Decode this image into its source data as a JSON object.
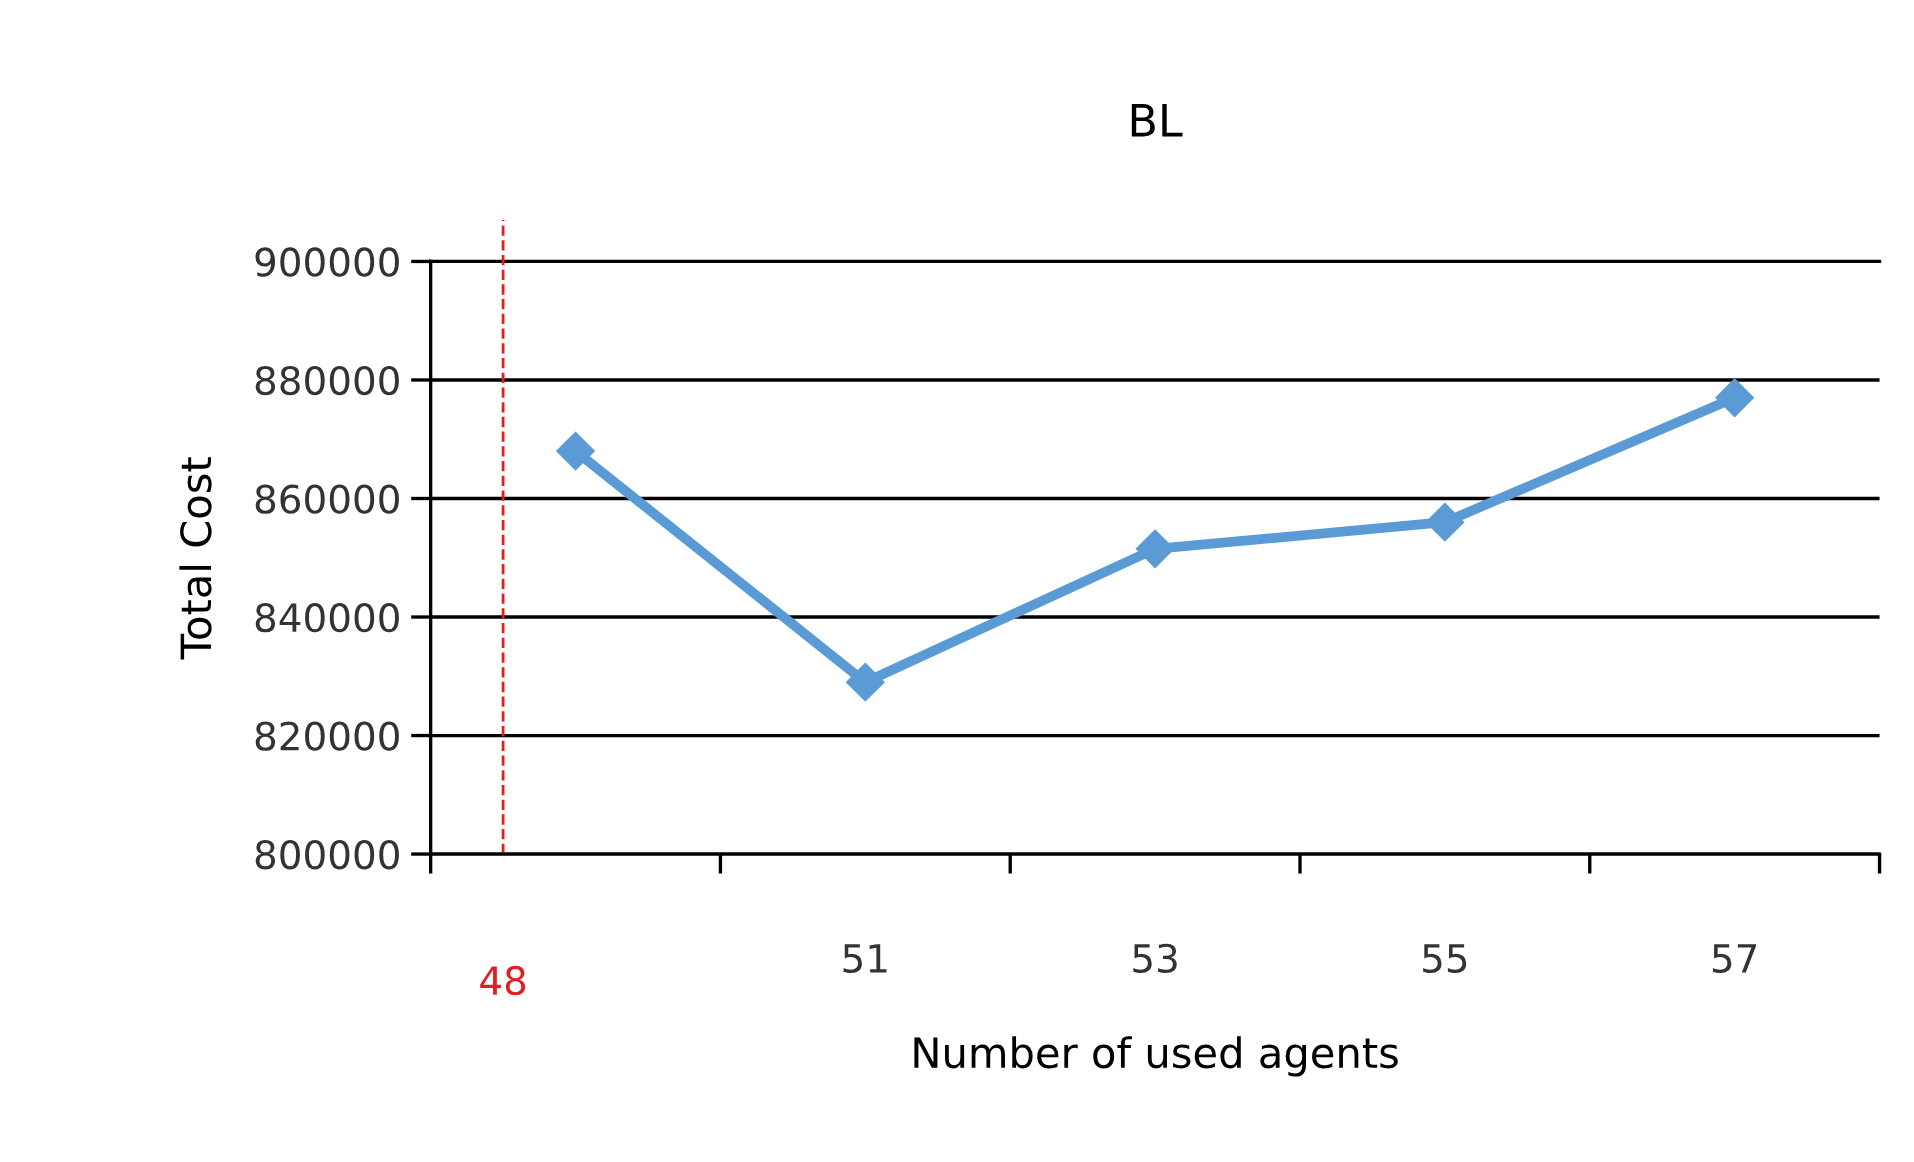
{
  "chart_data": {
    "type": "line",
    "title": "BL",
    "xlabel": "Number of used agents",
    "ylabel": "Total Cost",
    "x": [
      49,
      51,
      53,
      55,
      57
    ],
    "series": [
      {
        "color": "#5b9bd5",
        "values": [
          868000,
          829000,
          851500,
          856000,
          877000
        ]
      }
    ],
    "xlim": [
      48,
      58
    ],
    "xticks": [
      {
        "value": 48,
        "label": null
      },
      {
        "value": 50,
        "label": null
      },
      {
        "value": 51,
        "label": "51"
      },
      {
        "value": 52,
        "label": null
      },
      {
        "value": 53,
        "label": "53"
      },
      {
        "value": 54,
        "label": null
      },
      {
        "value": 55,
        "label": "55"
      },
      {
        "value": 56,
        "label": null
      },
      {
        "value": 57,
        "label": "57"
      },
      {
        "value": 58,
        "label": null
      }
    ],
    "ylim": [
      800000,
      900000
    ],
    "yticks": [
      800000,
      820000,
      840000,
      860000,
      880000,
      900000
    ],
    "grid": "y",
    "marker": "diamond",
    "line_style": "solid",
    "ref_lines": [
      {
        "axis": "x",
        "value": 48.5,
        "label": "48",
        "color": "#e02020",
        "line_style": "dashed"
      }
    ]
  }
}
